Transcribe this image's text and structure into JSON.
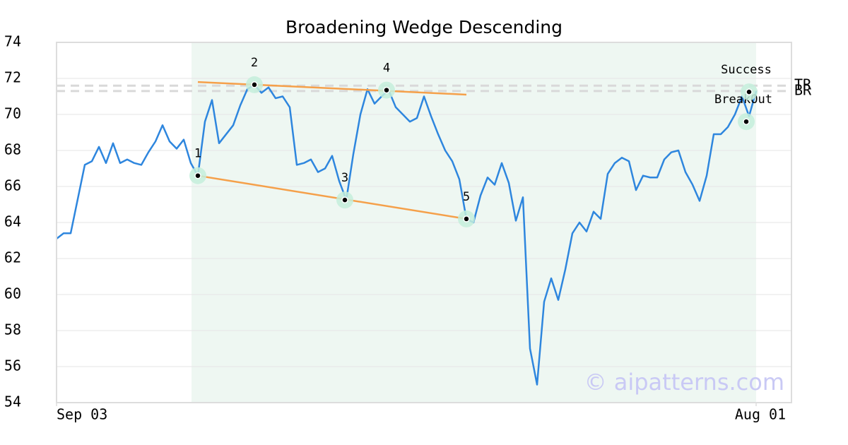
{
  "chart_data": {
    "type": "line",
    "title": "Broadening Wedge Descending",
    "watermark": "© aipatterns.com",
    "x": [
      0,
      1,
      2,
      3,
      4,
      5,
      6,
      7,
      8,
      9,
      10,
      11,
      12,
      13,
      14,
      15,
      16,
      17,
      18,
      19,
      20,
      21,
      22,
      23,
      24,
      25,
      26,
      27,
      28,
      29,
      30,
      31,
      32,
      33,
      34,
      35,
      36,
      37,
      38,
      39,
      40,
      41,
      42,
      43,
      44,
      45,
      46,
      47,
      48,
      49,
      50,
      51,
      52,
      53,
      54,
      55,
      56,
      57,
      58,
      59,
      60,
      61,
      62,
      63,
      64,
      65,
      66,
      67,
      68,
      69,
      70,
      71,
      72,
      73,
      74,
      75,
      76,
      77,
      78,
      79,
      80,
      81,
      82,
      83,
      84,
      85,
      86,
      87,
      88,
      89,
      90,
      91,
      92,
      93,
      94,
      95,
      96,
      97,
      98,
      99
    ],
    "series": [
      {
        "color": "#2e86de",
        "values": [
          63.1,
          63.4,
          63.4,
          65.3,
          67.2,
          67.4,
          68.2,
          67.3,
          68.4,
          67.3,
          67.5,
          67.3,
          67.2,
          67.9,
          68.5,
          69.4,
          68.5,
          68.1,
          68.6,
          67.3,
          66.6,
          69.6,
          70.8,
          68.4,
          68.9,
          69.4,
          70.5,
          71.4,
          71.65,
          71.2,
          71.5,
          70.9,
          71.0,
          70.4,
          67.2,
          67.3,
          67.5,
          66.8,
          67.0,
          67.7,
          66.3,
          65.25,
          67.8,
          70.0,
          71.4,
          70.6,
          71.0,
          71.35,
          70.4,
          70.0,
          69.6,
          69.8,
          71.0,
          69.9,
          68.9,
          68.0,
          67.4,
          66.4,
          64.2,
          64.0,
          65.5,
          66.5,
          66.1,
          67.3,
          66.2,
          64.1,
          65.4,
          57.0,
          55.0,
          59.6,
          60.9,
          59.7,
          61.4,
          63.4,
          64.0,
          63.5,
          64.6,
          64.2,
          66.7,
          67.3,
          67.6,
          67.4,
          65.8,
          66.6,
          66.5,
          66.5,
          67.5,
          67.9,
          68.0,
          66.8,
          66.1,
          65.2,
          66.6,
          68.9,
          68.9,
          69.3,
          70.0,
          71.0,
          69.9,
          71.3
        ]
      }
    ],
    "xlim": [
      0,
      104
    ],
    "xticks": [
      {
        "value": 0,
        "label": "Sep 03"
      },
      {
        "value": 99,
        "label": "Aug 01"
      }
    ],
    "ylim": [
      54,
      74
    ],
    "yticks": [
      54,
      56,
      58,
      60,
      62,
      64,
      66,
      68,
      70,
      72,
      74
    ],
    "grid": true,
    "shade": {
      "x": [
        19.1,
        99
      ],
      "color": "#eef7f2"
    },
    "trend_lines": [
      {
        "color": "#f5a04a",
        "x": [
          20,
          58
        ],
        "y": [
          71.8,
          71.1
        ]
      },
      {
        "color": "#f5a04a",
        "x": [
          20,
          58
        ],
        "y": [
          66.6,
          64.2
        ]
      }
    ],
    "levels": [
      {
        "label": "TR",
        "value": 71.6
      },
      {
        "label": "BR",
        "value": 71.3
      }
    ],
    "patterns": [
      {
        "label": "1",
        "x": 20,
        "y": 66.6
      },
      {
        "label": "2",
        "x": 28,
        "y": 71.65
      },
      {
        "label": "3",
        "x": 40.8,
        "y": 65.25
      },
      {
        "label": "4",
        "x": 46.7,
        "y": 71.35
      },
      {
        "label": "5",
        "x": 58,
        "y": 64.2
      },
      {
        "label": "BreakOut",
        "x": 97.6,
        "y": 69.6
      },
      {
        "label": "Success",
        "x": 98,
        "y": 71.25
      }
    ]
  }
}
